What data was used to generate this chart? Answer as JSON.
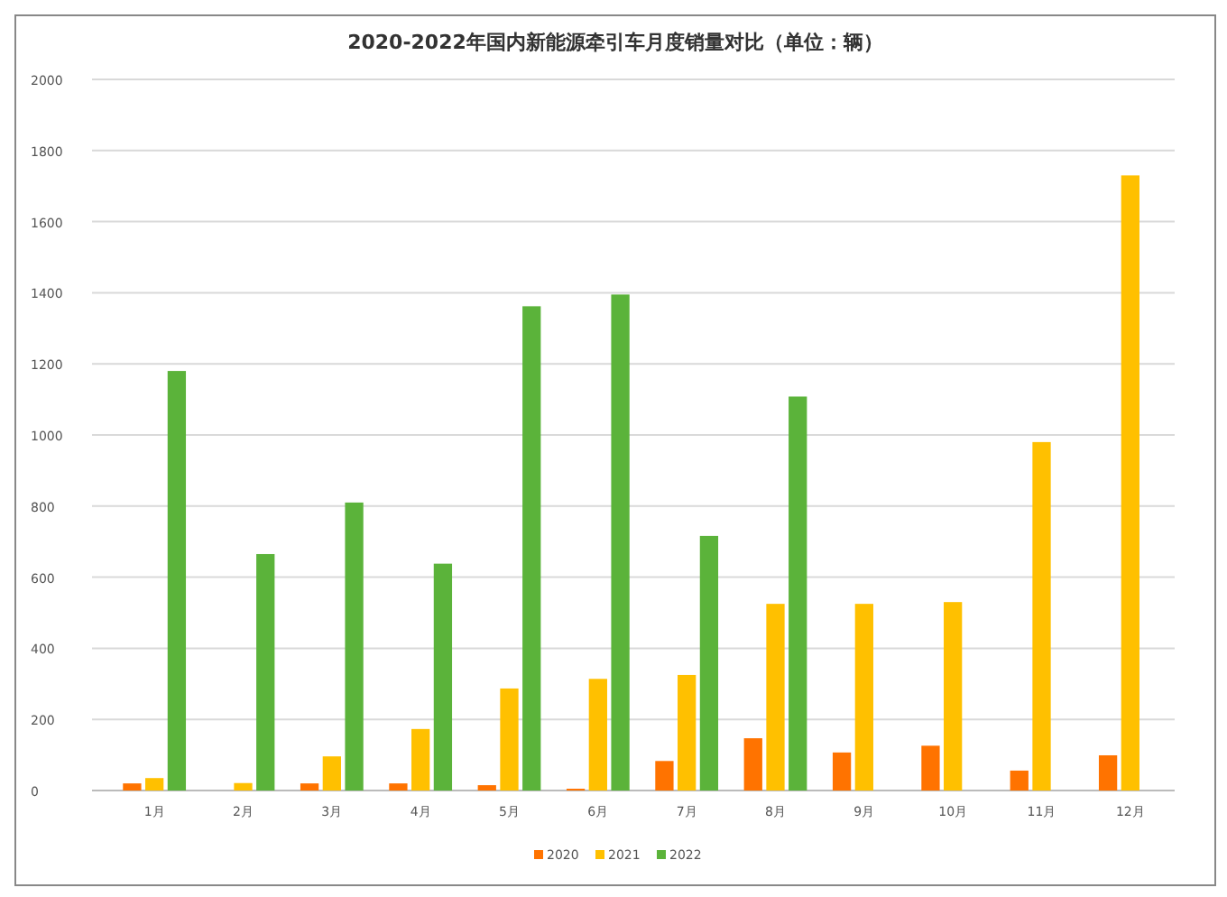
{
  "chart_data": {
    "type": "bar",
    "title": "2020-2022年国内新能源牵引车月度销量对比（单位：辆）",
    "categories": [
      "1月",
      "2月",
      "3月",
      "4月",
      "5月",
      "6月",
      "7月",
      "8月",
      "9月",
      "10月",
      "11月",
      "12月"
    ],
    "series": [
      {
        "name": "2020",
        "color": "#ff7300",
        "values": [
          20,
          null,
          20,
          20,
          15,
          5,
          83,
          147,
          107,
          126,
          56,
          99
        ]
      },
      {
        "name": "2021",
        "color": "#ffc000",
        "values": [
          35,
          21,
          96,
          173,
          287,
          314,
          325,
          525,
          525,
          530,
          980,
          1730
        ]
      },
      {
        "name": "2022",
        "color": "#5bb33a",
        "values": [
          1180,
          665,
          810,
          638,
          1362,
          1395,
          716,
          1108,
          null,
          null,
          null,
          null
        ]
      }
    ],
    "ylim": [
      0,
      2000
    ],
    "yticks": [
      0,
      200,
      400,
      600,
      800,
      1000,
      1200,
      1400,
      1600,
      1800,
      2000
    ],
    "grid": "y",
    "legend": "bottom"
  }
}
